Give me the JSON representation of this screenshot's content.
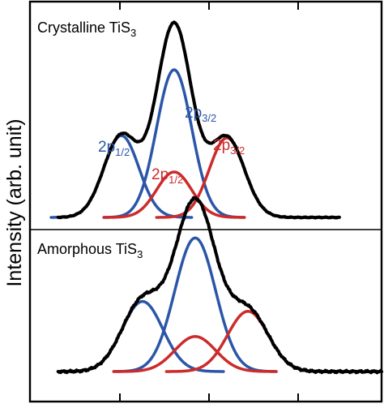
{
  "colors": {
    "blue": "#2b56a8",
    "red": "#cc2b2b",
    "black": "#000000"
  },
  "chart_data": {
    "type": "line",
    "ylabel": "Intensity (arb. unit)",
    "xlabel": "",
    "xlim": [
      0,
      100
    ],
    "ylim": [
      0,
      1
    ],
    "grid": false,
    "panels": [
      {
        "title_main": "Crystalline TiS",
        "title_sub": "3",
        "components": [
          {
            "label": "2p",
            "sub": "1/2",
            "color": "blue",
            "center": 26,
            "amplitude": 0.72,
            "sigma": 5.0
          },
          {
            "label": "2p",
            "sub": "3/2",
            "color": "blue",
            "center": 41,
            "amplitude": 1.3,
            "sigma": 5.0
          },
          {
            "label": "2p",
            "sub": "1/2",
            "color": "red",
            "center": 41,
            "amplitude": 0.4,
            "sigma": 5.0
          },
          {
            "label": "2p",
            "sub": "3/2",
            "color": "red",
            "center": 56,
            "amplitude": 0.7,
            "sigma": 5.0
          }
        ]
      },
      {
        "title_main": "Amorphous TiS",
        "title_sub": "3",
        "components": [
          {
            "color": "blue",
            "center": 32,
            "amplitude": 0.64,
            "sigma": 5.8
          },
          {
            "color": "blue",
            "center": 47,
            "amplitude": 1.22,
            "sigma": 5.8
          },
          {
            "color": "red",
            "center": 47,
            "amplitude": 0.32,
            "sigma": 5.8
          },
          {
            "color": "red",
            "center": 62,
            "amplitude": 0.55,
            "sigma": 5.8
          }
        ]
      }
    ]
  }
}
